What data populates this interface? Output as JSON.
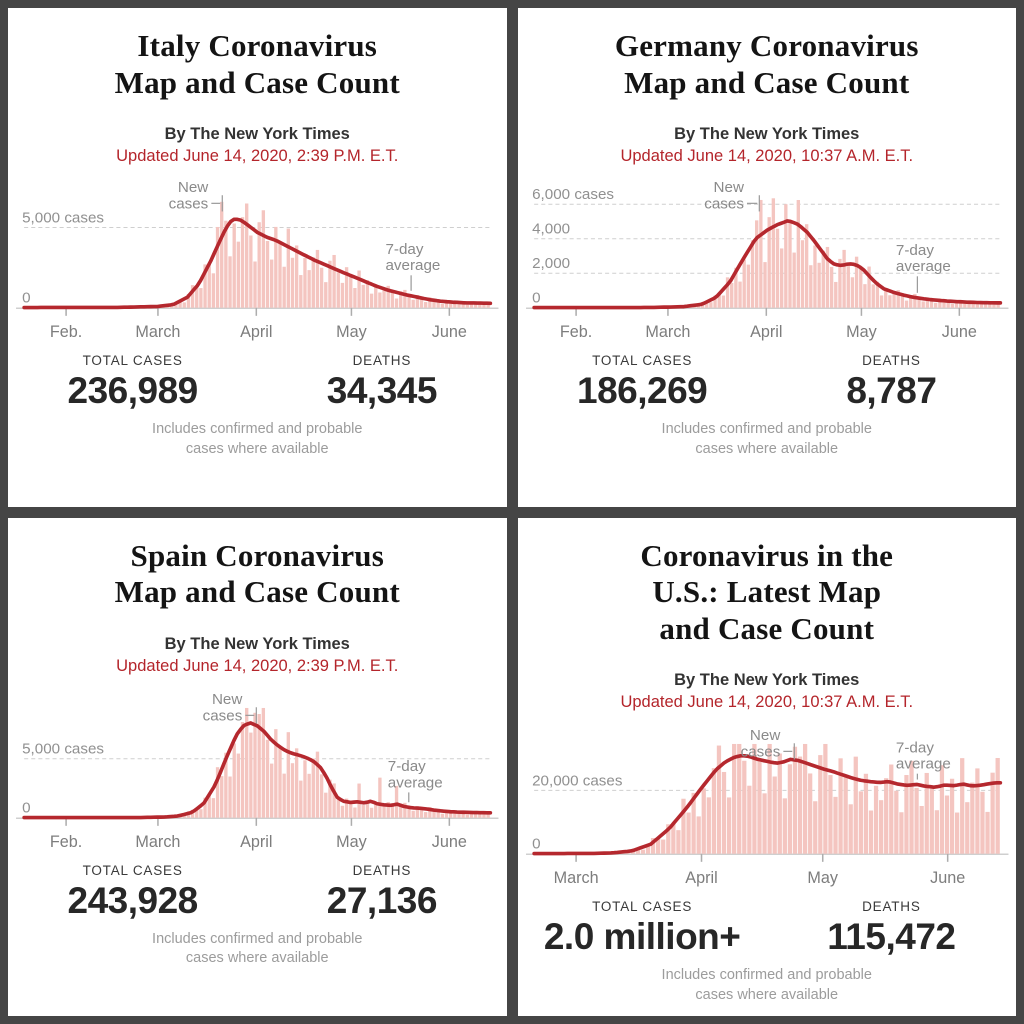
{
  "frame_color": "#454545",
  "accent_red": "#b4252b",
  "bar_color": "#f4c5c0",
  "line_color": "#b5282e",
  "chart_noise": [
    0.75,
    1.05,
    1.25,
    0.9,
    0.6,
    1.15,
    1.35,
    0.95,
    0.7,
    1.2,
    1.0,
    0.65,
    1.3,
    0.85,
    1.1,
    0.6,
    0.95
  ],
  "cards": [
    {
      "title": "Italy Coronavirus\nMap and Case Count",
      "byline": "By The New York Times",
      "updated": "Updated June 14, 2020, 2:39 P.M. E.T.",
      "total_cases_label": "TOTAL CASES",
      "total_cases_value": "236,989",
      "deaths_label": "DEATHS",
      "deaths_value": "34,345",
      "footnote": "Includes confirmed and probable\ncases where available"
    },
    {
      "title": "Germany Coronavirus\nMap and Case Count",
      "byline": "By The New York Times",
      "updated": "Updated June 14, 2020, 10:37 A.M. E.T.",
      "total_cases_label": "TOTAL CASES",
      "total_cases_value": "186,269",
      "deaths_label": "DEATHS",
      "deaths_value": "8,787",
      "footnote": "Includes confirmed and probable\ncases where available"
    },
    {
      "title": "Spain Coronavirus\nMap and Case Count",
      "byline": "By The New York Times",
      "updated": "Updated June 14, 2020, 2:39 P.M. E.T.",
      "total_cases_label": "TOTAL CASES",
      "total_cases_value": "243,928",
      "deaths_label": "DEATHS",
      "deaths_value": "27,136",
      "footnote": "Includes confirmed and probable\ncases where available"
    },
    {
      "title": "Coronavirus in the\nU.S.: Latest Map\nand Case Count",
      "byline": "By The New York Times",
      "updated": "Updated June 14, 2020, 10:37 A.M. E.T.",
      "total_cases_label": "TOTAL CASES",
      "total_cases_value": "2.0 million+",
      "deaths_label": "DEATHS",
      "deaths_value": "115,472",
      "footnote": "Includes confirmed and probable\ncases where available"
    }
  ],
  "chart_data": [
    {
      "type": "bar",
      "country": "Italy",
      "bar_series_name": "New cases",
      "avg_series_name": "7-day average",
      "ymax": 7200,
      "gridlines": [
        {
          "v": 5000,
          "label": "5,000 cases"
        }
      ],
      "zero_label": "0",
      "x_months": [
        {
          "f": 0.09,
          "label": "Feb."
        },
        {
          "f": 0.287,
          "label": "March"
        },
        {
          "f": 0.498,
          "label": "April"
        },
        {
          "f": 0.702,
          "label": "May"
        },
        {
          "f": 0.912,
          "label": "June"
        }
      ],
      "avg_points": [
        [
          0,
          15
        ],
        [
          0.2,
          20
        ],
        [
          0.288,
          80
        ],
        [
          0.32,
          200
        ],
        [
          0.35,
          650
        ],
        [
          0.375,
          1500
        ],
        [
          0.4,
          2900
        ],
        [
          0.425,
          4500
        ],
        [
          0.44,
          5300
        ],
        [
          0.452,
          5550
        ],
        [
          0.465,
          5450
        ],
        [
          0.48,
          5150
        ],
        [
          0.5,
          4700
        ],
        [
          0.52,
          4400
        ],
        [
          0.54,
          4200
        ],
        [
          0.56,
          3900
        ],
        [
          0.58,
          3600
        ],
        [
          0.6,
          3300
        ],
        [
          0.62,
          3000
        ],
        [
          0.64,
          2750
        ],
        [
          0.66,
          2500
        ],
        [
          0.68,
          2250
        ],
        [
          0.705,
          1950
        ],
        [
          0.73,
          1650
        ],
        [
          0.755,
          1350
        ],
        [
          0.78,
          1100
        ],
        [
          0.8,
          950
        ],
        [
          0.82,
          800
        ],
        [
          0.845,
          650
        ],
        [
          0.87,
          500
        ],
        [
          0.89,
          420
        ],
        [
          0.917,
          350
        ],
        [
          0.95,
          300
        ],
        [
          0.999,
          280
        ]
      ],
      "nbars": 112,
      "overrides": [
        [
          0.425,
          6600
        ]
      ],
      "labels": {
        "new_line1": "New",
        "new_line2": "cases",
        "avg_line1": "7-day",
        "avg_line2": "average"
      },
      "new_cases_ann": {
        "text_f": 0.395,
        "tick_f": 0.425,
        "y": 14
      },
      "avg7_ann": {
        "text_f": 0.775,
        "ptr_f": 0.83,
        "y": 75
      }
    },
    {
      "type": "bar",
      "country": "Germany",
      "bar_series_name": "New cases",
      "avg_series_name": "7-day average",
      "ymax": 6700,
      "gridlines": [
        {
          "v": 6000,
          "label": "6,000 cases"
        },
        {
          "v": 4000,
          "label": "4,000"
        },
        {
          "v": 2000,
          "label": "2,000"
        }
      ],
      "zero_label": "0",
      "x_months": [
        {
          "f": 0.09,
          "label": "Feb."
        },
        {
          "f": 0.287,
          "label": "March"
        },
        {
          "f": 0.498,
          "label": "April"
        },
        {
          "f": 0.702,
          "label": "May"
        },
        {
          "f": 0.912,
          "label": "June"
        }
      ],
      "avg_points": [
        [
          0,
          10
        ],
        [
          0.25,
          15
        ],
        [
          0.32,
          60
        ],
        [
          0.36,
          200
        ],
        [
          0.39,
          600
        ],
        [
          0.42,
          1500
        ],
        [
          0.45,
          2900
        ],
        [
          0.475,
          4000
        ],
        [
          0.5,
          4500
        ],
        [
          0.52,
          4800
        ],
        [
          0.545,
          5050
        ],
        [
          0.565,
          4850
        ],
        [
          0.585,
          4400
        ],
        [
          0.6,
          3900
        ],
        [
          0.615,
          3350
        ],
        [
          0.63,
          2800
        ],
        [
          0.645,
          2500
        ],
        [
          0.66,
          2450
        ],
        [
          0.675,
          2550
        ],
        [
          0.69,
          2500
        ],
        [
          0.705,
          2250
        ],
        [
          0.72,
          1800
        ],
        [
          0.735,
          1400
        ],
        [
          0.75,
          1100
        ],
        [
          0.77,
          900
        ],
        [
          0.79,
          750
        ],
        [
          0.81,
          620
        ],
        [
          0.83,
          540
        ],
        [
          0.85,
          470
        ],
        [
          0.87,
          420
        ],
        [
          0.89,
          380
        ],
        [
          0.917,
          340
        ],
        [
          0.95,
          300
        ],
        [
          0.999,
          280
        ]
      ],
      "nbars": 112,
      "overrides": [
        [
          0.483,
          6250
        ]
      ],
      "labels": {
        "new_line1": "New",
        "new_line2": "cases",
        "avg_line1": "7-day",
        "avg_line2": "average"
      },
      "new_cases_ann": {
        "text_f": 0.45,
        "tick_f": 0.483,
        "y": 14
      },
      "avg7_ann": {
        "text_f": 0.776,
        "ptr_f": 0.822,
        "y": 76
      }
    },
    {
      "type": "bar",
      "country": "Spain",
      "bar_series_name": "New cases",
      "avg_series_name": "7-day average",
      "ymax": 9800,
      "gridlines": [
        {
          "v": 5000,
          "label": "5,000 cases"
        }
      ],
      "zero_label": "0",
      "x_months": [
        {
          "f": 0.09,
          "label": "Feb."
        },
        {
          "f": 0.287,
          "label": "March"
        },
        {
          "f": 0.498,
          "label": "April"
        },
        {
          "f": 0.702,
          "label": "May"
        },
        {
          "f": 0.912,
          "label": "June"
        }
      ],
      "avg_points": [
        [
          0,
          15
        ],
        [
          0.25,
          20
        ],
        [
          0.3,
          60
        ],
        [
          0.33,
          150
        ],
        [
          0.36,
          450
        ],
        [
          0.385,
          1200
        ],
        [
          0.41,
          2800
        ],
        [
          0.435,
          5200
        ],
        [
          0.455,
          7000
        ],
        [
          0.47,
          7800
        ],
        [
          0.485,
          8050
        ],
        [
          0.5,
          7800
        ],
        [
          0.515,
          7300
        ],
        [
          0.53,
          6600
        ],
        [
          0.545,
          6100
        ],
        [
          0.56,
          5700
        ],
        [
          0.575,
          5450
        ],
        [
          0.59,
          5300
        ],
        [
          0.605,
          5100
        ],
        [
          0.62,
          4800
        ],
        [
          0.635,
          4300
        ],
        [
          0.648,
          3500
        ],
        [
          0.66,
          2500
        ],
        [
          0.672,
          1700
        ],
        [
          0.685,
          1400
        ],
        [
          0.7,
          1300
        ],
        [
          0.715,
          1350
        ],
        [
          0.73,
          1250
        ],
        [
          0.745,
          1420
        ],
        [
          0.755,
          1200
        ],
        [
          0.77,
          1100
        ],
        [
          0.785,
          1050
        ],
        [
          0.8,
          1150
        ],
        [
          0.815,
          950
        ],
        [
          0.83,
          850
        ],
        [
          0.85,
          800
        ],
        [
          0.87,
          700
        ],
        [
          0.89,
          600
        ],
        [
          0.91,
          520
        ],
        [
          0.93,
          480
        ],
        [
          0.96,
          440
        ],
        [
          0.999,
          420
        ]
      ],
      "nbars": 112,
      "overrides": [
        [
          0.498,
          8900
        ],
        [
          0.72,
          2900
        ],
        [
          0.765,
          3400
        ],
        [
          0.8,
          2700
        ]
      ],
      "labels": {
        "new_line1": "New",
        "new_line2": "cases",
        "avg_line1": "7-day",
        "avg_line2": "average"
      },
      "new_cases_ann": {
        "text_f": 0.468,
        "tick_f": 0.498,
        "y": 16
      },
      "avg7_ann": {
        "text_f": 0.78,
        "ptr_f": 0.825,
        "y": 82
      }
    },
    {
      "type": "bar",
      "country": "United States",
      "bar_series_name": "New cases",
      "avg_series_name": "7-day average",
      "ymax": 36500,
      "gridlines": [
        {
          "v": 20000,
          "label": "20,000 cases"
        }
      ],
      "zero_label": "0",
      "x_months": [
        {
          "f": 0.09,
          "label": "March"
        },
        {
          "f": 0.359,
          "label": "April"
        },
        {
          "f": 0.619,
          "label": "May"
        },
        {
          "f": 0.887,
          "label": "June"
        }
      ],
      "avg_points": [
        [
          0,
          60
        ],
        [
          0.13,
          100
        ],
        [
          0.17,
          300
        ],
        [
          0.21,
          900
        ],
        [
          0.25,
          3000
        ],
        [
          0.29,
          8000
        ],
        [
          0.33,
          15000
        ],
        [
          0.36,
          21000
        ],
        [
          0.39,
          26500
        ],
        [
          0.41,
          29000
        ],
        [
          0.43,
          30500
        ],
        [
          0.445,
          31000
        ],
        [
          0.46,
          30800
        ],
        [
          0.475,
          30000
        ],
        [
          0.49,
          29500
        ],
        [
          0.505,
          29000
        ],
        [
          0.52,
          28600
        ],
        [
          0.535,
          29000
        ],
        [
          0.55,
          29800
        ],
        [
          0.565,
          29500
        ],
        [
          0.58,
          28800
        ],
        [
          0.6,
          27800
        ],
        [
          0.62,
          26800
        ],
        [
          0.64,
          26000
        ],
        [
          0.66,
          25000
        ],
        [
          0.68,
          24000
        ],
        [
          0.7,
          23200
        ],
        [
          0.72,
          22800
        ],
        [
          0.74,
          22500
        ],
        [
          0.76,
          22800
        ],
        [
          0.78,
          22000
        ],
        [
          0.8,
          21600
        ],
        [
          0.82,
          21900
        ],
        [
          0.84,
          21300
        ],
        [
          0.86,
          21000
        ],
        [
          0.88,
          21700
        ],
        [
          0.9,
          21500
        ],
        [
          0.92,
          22000
        ],
        [
          0.94,
          21400
        ],
        [
          0.96,
          21700
        ],
        [
          0.98,
          22200
        ],
        [
          0.991,
          22400
        ]
      ],
      "nbars": 92,
      "overrides": [
        [
          0.558,
          33800
        ],
        [
          0.92,
          30200
        ]
      ],
      "labels": {
        "new_line1": "New",
        "new_line2": "cases",
        "avg_line1": "7-day",
        "avg_line2": "average"
      },
      "new_cases_ann": {
        "text_f": 0.528,
        "tick_f": 0.558,
        "y": 16
      },
      "avg7_ann": {
        "text_f": 0.776,
        "ptr_f": 0.822,
        "y": 28
      }
    }
  ]
}
